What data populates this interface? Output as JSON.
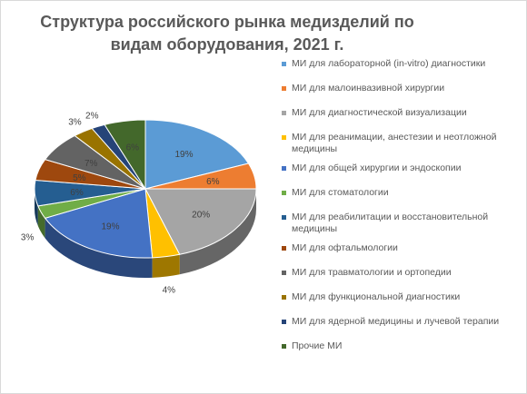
{
  "chart_data": {
    "type": "pie",
    "title": "Структура российского рынка медизделий по видам оборудования, 2021 г.",
    "legend_position": "right",
    "style": "3d-pie",
    "categories": [
      "МИ для лабораторной (in-vitro) диагностики",
      "МИ для малоинвазивной хирургии",
      "МИ для диагностической визуализации",
      "МИ для реанимации, анестезии и неотложной медицины",
      "МИ для общей хирургии и эндоскопии",
      "МИ для стоматологии",
      "МИ для реабилитации и восстановительной медицины",
      "МИ для офтальмологии",
      "МИ для травматологии и ортопедии",
      "МИ для функциональной диагностики",
      "МИ для ядерной медицины и лучевой терапии",
      "Прочие МИ"
    ],
    "values": [
      19,
      6,
      20,
      4,
      19,
      3,
      6,
      5,
      7,
      3,
      2,
      6
    ],
    "labels": [
      "19%",
      "6%",
      "20%",
      "4%",
      "19%",
      "3%",
      "6%",
      "5%",
      "7%",
      "3%",
      "2%",
      "6%"
    ],
    "colors": [
      "#5b9bd5",
      "#ed7d31",
      "#a5a5a5",
      "#ffc000",
      "#4472c4",
      "#70ad47",
      "#255e91",
      "#9e480e",
      "#636363",
      "#997300",
      "#264478",
      "#43682b"
    ]
  }
}
